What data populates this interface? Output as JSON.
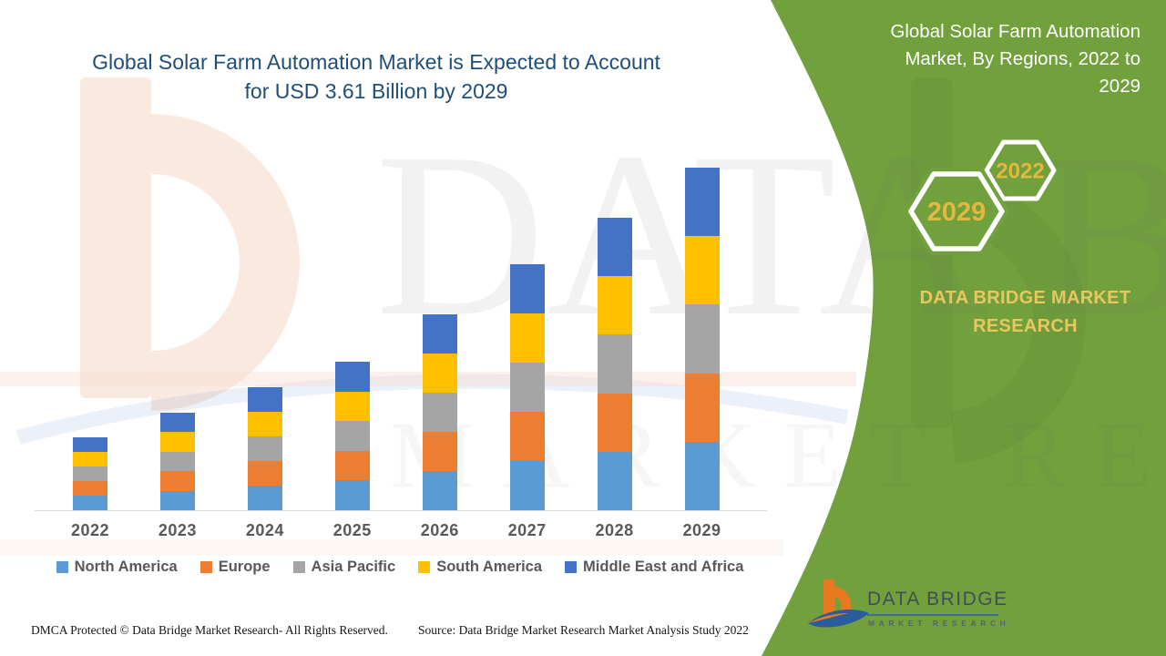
{
  "title": {
    "line1": "Global Solar Farm Automation Market is Expected to Account",
    "line2": "for USD 3.61 Billion by 2029"
  },
  "side_panel": {
    "heading_lines": [
      "Global Solar Farm Automation",
      "Market, By Regions, 2022 to",
      "2029"
    ],
    "hexagons": [
      {
        "label": "2022"
      },
      {
        "label": "2029"
      }
    ],
    "brand": "DATA BRIDGE MARKET RESEARCH",
    "colors": {
      "panel_green": "#71A03D",
      "gold_text": "#E8C75F",
      "hex_gold": "#E3B83E",
      "hex_border": "#FFFFFF"
    }
  },
  "watermark": {
    "line1": "DATA BRIDGE",
    "line2": "MARKET RESEARCH"
  },
  "footer": {
    "dmca": "DMCA Protected © Data Bridge Market Research- All Rights Reserved.",
    "source": "Source: Data Bridge Market Research Market Analysis Study 2022",
    "logo": {
      "name": "DATA BRIDGE",
      "subtitle": "MARKET RESEARCH"
    }
  },
  "theme": {
    "title_navy": "#1F4E79",
    "axis_label_gray": "#595959",
    "axis_line": "#D9D9D9",
    "background": "#FFFFFF"
  },
  "chart_data": {
    "type": "bar",
    "stacked": true,
    "title": "Global Solar Farm Automation Market is Expected to Account for USD 3.61 Billion by 2029",
    "unit": "USD Billion",
    "xlabel": "",
    "ylabel": "",
    "categories": [
      "2022",
      "2023",
      "2024",
      "2025",
      "2026",
      "2027",
      "2028",
      "2029"
    ],
    "series": [
      {
        "name": "North America",
        "color": "#5B9BD5",
        "values": [
          0.154,
          0.206,
          0.26,
          0.312,
          0.412,
          0.518,
          0.616,
          0.722
        ]
      },
      {
        "name": "Europe",
        "color": "#ED7D31",
        "values": [
          0.154,
          0.206,
          0.26,
          0.312,
          0.412,
          0.518,
          0.616,
          0.722
        ]
      },
      {
        "name": "Asia Pacific",
        "color": "#A5A5A5",
        "values": [
          0.154,
          0.206,
          0.26,
          0.312,
          0.412,
          0.518,
          0.616,
          0.722
        ]
      },
      {
        "name": "South America",
        "color": "#FFC000",
        "values": [
          0.154,
          0.206,
          0.26,
          0.312,
          0.412,
          0.518,
          0.616,
          0.722
        ]
      },
      {
        "name": "Middle East and Africa",
        "color": "#4472C4",
        "values": [
          0.154,
          0.206,
          0.26,
          0.312,
          0.412,
          0.518,
          0.616,
          0.722
        ]
      }
    ],
    "totals_estimated": [
      0.77,
      1.03,
      1.3,
      1.56,
      2.06,
      2.59,
      3.08,
      3.61
    ],
    "ylim": [
      0,
      3.8
    ],
    "grid": false,
    "legend_position": "bottom"
  }
}
